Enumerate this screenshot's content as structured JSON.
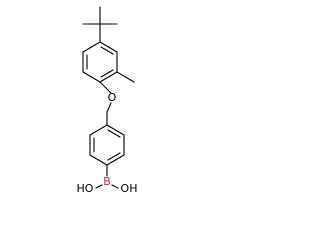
{
  "atoms": {
    "oxygen": "O",
    "boron": "B",
    "hydroxyl_left": "HO",
    "hydroxyl_right": "OH"
  }
}
